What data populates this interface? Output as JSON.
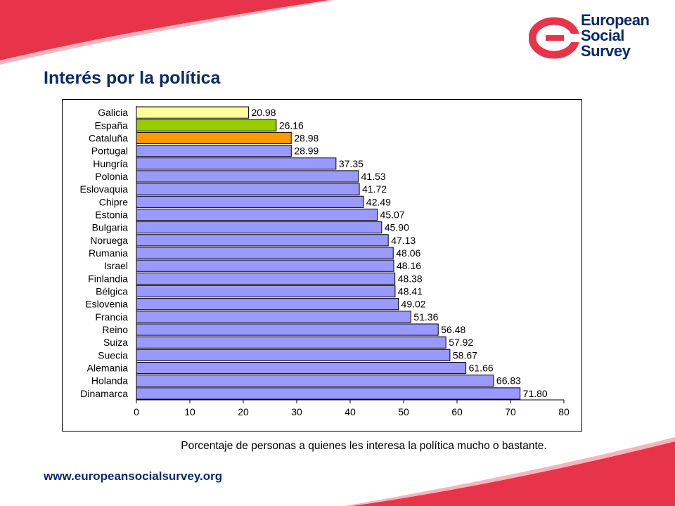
{
  "title": "Interés por la política",
  "logo": {
    "line1": "European",
    "line2": "Social",
    "line3": "Survey"
  },
  "caption": "Porcentaje de personas a quienes les interesa la política mucho o bastante.",
  "footer_url": "www.europeansocialsurvey.org",
  "colors": {
    "accent_red": "#e8344a",
    "brand_navy": "#0a2a6b",
    "bar_default": "#9999ff",
    "highlight_galicia": "#ffff99",
    "highlight_espana": "#99cc00",
    "highlight_cataluna": "#ff9900"
  },
  "chart_data": {
    "type": "bar",
    "orientation": "horizontal",
    "categories": [
      "Galicia",
      "España",
      "Cataluña",
      "Portugal",
      "Hungría",
      "Polonia",
      "Eslovaquia",
      "Chipre",
      "Estonia",
      "Bulgaria",
      "Noruega",
      "Rumania",
      "Israel",
      "Finlandia",
      "Bélgica",
      "Eslovenia",
      "Francia",
      "Reino",
      "Suiza",
      "Suecia",
      "Alemania",
      "Holanda",
      "Dinamarca"
    ],
    "values": [
      20.98,
      26.16,
      28.98,
      28.99,
      37.35,
      41.53,
      41.72,
      42.49,
      45.07,
      45.9,
      47.13,
      48.06,
      48.16,
      48.38,
      48.41,
      49.02,
      51.36,
      56.48,
      57.92,
      58.67,
      61.66,
      66.83,
      71.8
    ],
    "value_labels": [
      "20.98",
      "26.16",
      "28.98",
      "28.99",
      "37.35",
      "41.53",
      "41.72",
      "42.49",
      "45.07",
      "45.90",
      "47.13",
      "48.06",
      "48.16",
      "48.38",
      "48.41",
      "49.02",
      "51.36",
      "56.48",
      "57.92",
      "58.67",
      "61.66",
      "66.83",
      "71.80"
    ],
    "bar_colors": [
      "#ffff99",
      "#99cc00",
      "#ff9900",
      "#9999ff",
      "#9999ff",
      "#9999ff",
      "#9999ff",
      "#9999ff",
      "#9999ff",
      "#9999ff",
      "#9999ff",
      "#9999ff",
      "#9999ff",
      "#9999ff",
      "#9999ff",
      "#9999ff",
      "#9999ff",
      "#9999ff",
      "#9999ff",
      "#9999ff",
      "#9999ff",
      "#9999ff",
      "#9999ff"
    ],
    "xlim": [
      0,
      80
    ],
    "xticks": [
      0,
      10,
      20,
      30,
      40,
      50,
      60,
      70,
      80
    ],
    "grid": false,
    "legend": "none"
  }
}
